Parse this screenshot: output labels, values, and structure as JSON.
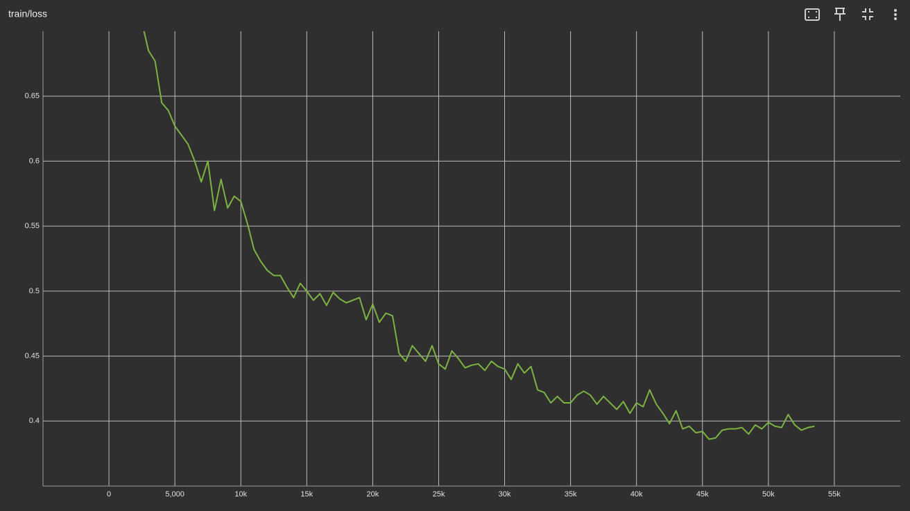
{
  "chart_data": {
    "type": "line",
    "title": "train/loss",
    "x": [
      2500,
      3000,
      3500,
      4000,
      4500,
      5000,
      5500,
      6000,
      6500,
      7000,
      7500,
      8000,
      8500,
      9000,
      9500,
      10000,
      10500,
      11000,
      11500,
      12000,
      12500,
      13000,
      13500,
      14000,
      14500,
      15000,
      15500,
      16000,
      16500,
      17000,
      17500,
      18000,
      18500,
      19000,
      19500,
      20000,
      20500,
      21000,
      21500,
      22000,
      22500,
      23000,
      23500,
      24000,
      24500,
      25000,
      25500,
      26000,
      26500,
      27000,
      27500,
      28000,
      28500,
      29000,
      29500,
      30000,
      30500,
      31000,
      31500,
      32000,
      32500,
      33000,
      33500,
      34000,
      34500,
      35000,
      35500,
      36000,
      36500,
      37000,
      37500,
      38000,
      38500,
      39000,
      39500,
      40000,
      40500,
      41000,
      41500,
      42000,
      42500,
      43000,
      43500,
      44000,
      44500,
      45000,
      45500,
      46000,
      46500,
      47000,
      47500,
      48000,
      48500,
      49000,
      49500,
      50000,
      50500,
      51000,
      51500,
      52000,
      52500,
      53000,
      53500
    ],
    "values": [
      0.707,
      0.685,
      0.677,
      0.645,
      0.639,
      0.627,
      0.62,
      0.613,
      0.6,
      0.584,
      0.6,
      0.562,
      0.586,
      0.564,
      0.573,
      0.569,
      0.552,
      0.532,
      0.523,
      0.516,
      0.512,
      0.512,
      0.503,
      0.495,
      0.506,
      0.5,
      0.493,
      0.498,
      0.489,
      0.499,
      0.494,
      0.491,
      0.493,
      0.495,
      0.478,
      0.49,
      0.476,
      0.483,
      0.481,
      0.452,
      0.446,
      0.458,
      0.452,
      0.446,
      0.458,
      0.444,
      0.44,
      0.454,
      0.448,
      0.441,
      0.443,
      0.444,
      0.439,
      0.446,
      0.442,
      0.44,
      0.432,
      0.444,
      0.437,
      0.442,
      0.424,
      0.422,
      0.414,
      0.419,
      0.414,
      0.414,
      0.42,
      0.423,
      0.42,
      0.413,
      0.419,
      0.414,
      0.409,
      0.415,
      0.406,
      0.414,
      0.411,
      0.424,
      0.413,
      0.406,
      0.398,
      0.408,
      0.394,
      0.396,
      0.391,
      0.392,
      0.386,
      0.387,
      0.393,
      0.394,
      0.394,
      0.395,
      0.39,
      0.397,
      0.394,
      0.399,
      0.396,
      0.395,
      0.405,
      0.397,
      0.393,
      0.395,
      0.396
    ],
    "color": "#7cb342",
    "xlim": [
      -5000,
      60000
    ],
    "xticks": [
      0,
      {
        "value": 5000,
        "label": "5,000"
      },
      {
        "value": 10000,
        "label": "10k"
      },
      {
        "value": 15000,
        "label": "15k"
      },
      {
        "value": 20000,
        "label": "20k"
      },
      {
        "value": 25000,
        "label": "25k"
      },
      {
        "value": 30000,
        "label": "30k"
      },
      {
        "value": 35000,
        "label": "35k"
      },
      {
        "value": 40000,
        "label": "40k"
      },
      {
        "value": 45000,
        "label": "45k"
      },
      {
        "value": 50000,
        "label": "50k"
      },
      {
        "value": 55000,
        "label": "55k"
      }
    ],
    "ylim": [
      0.35,
      0.7
    ],
    "yticks": [
      0.4,
      0.45,
      0.5,
      0.55,
      0.6,
      0.65
    ],
    "grid": true
  }
}
